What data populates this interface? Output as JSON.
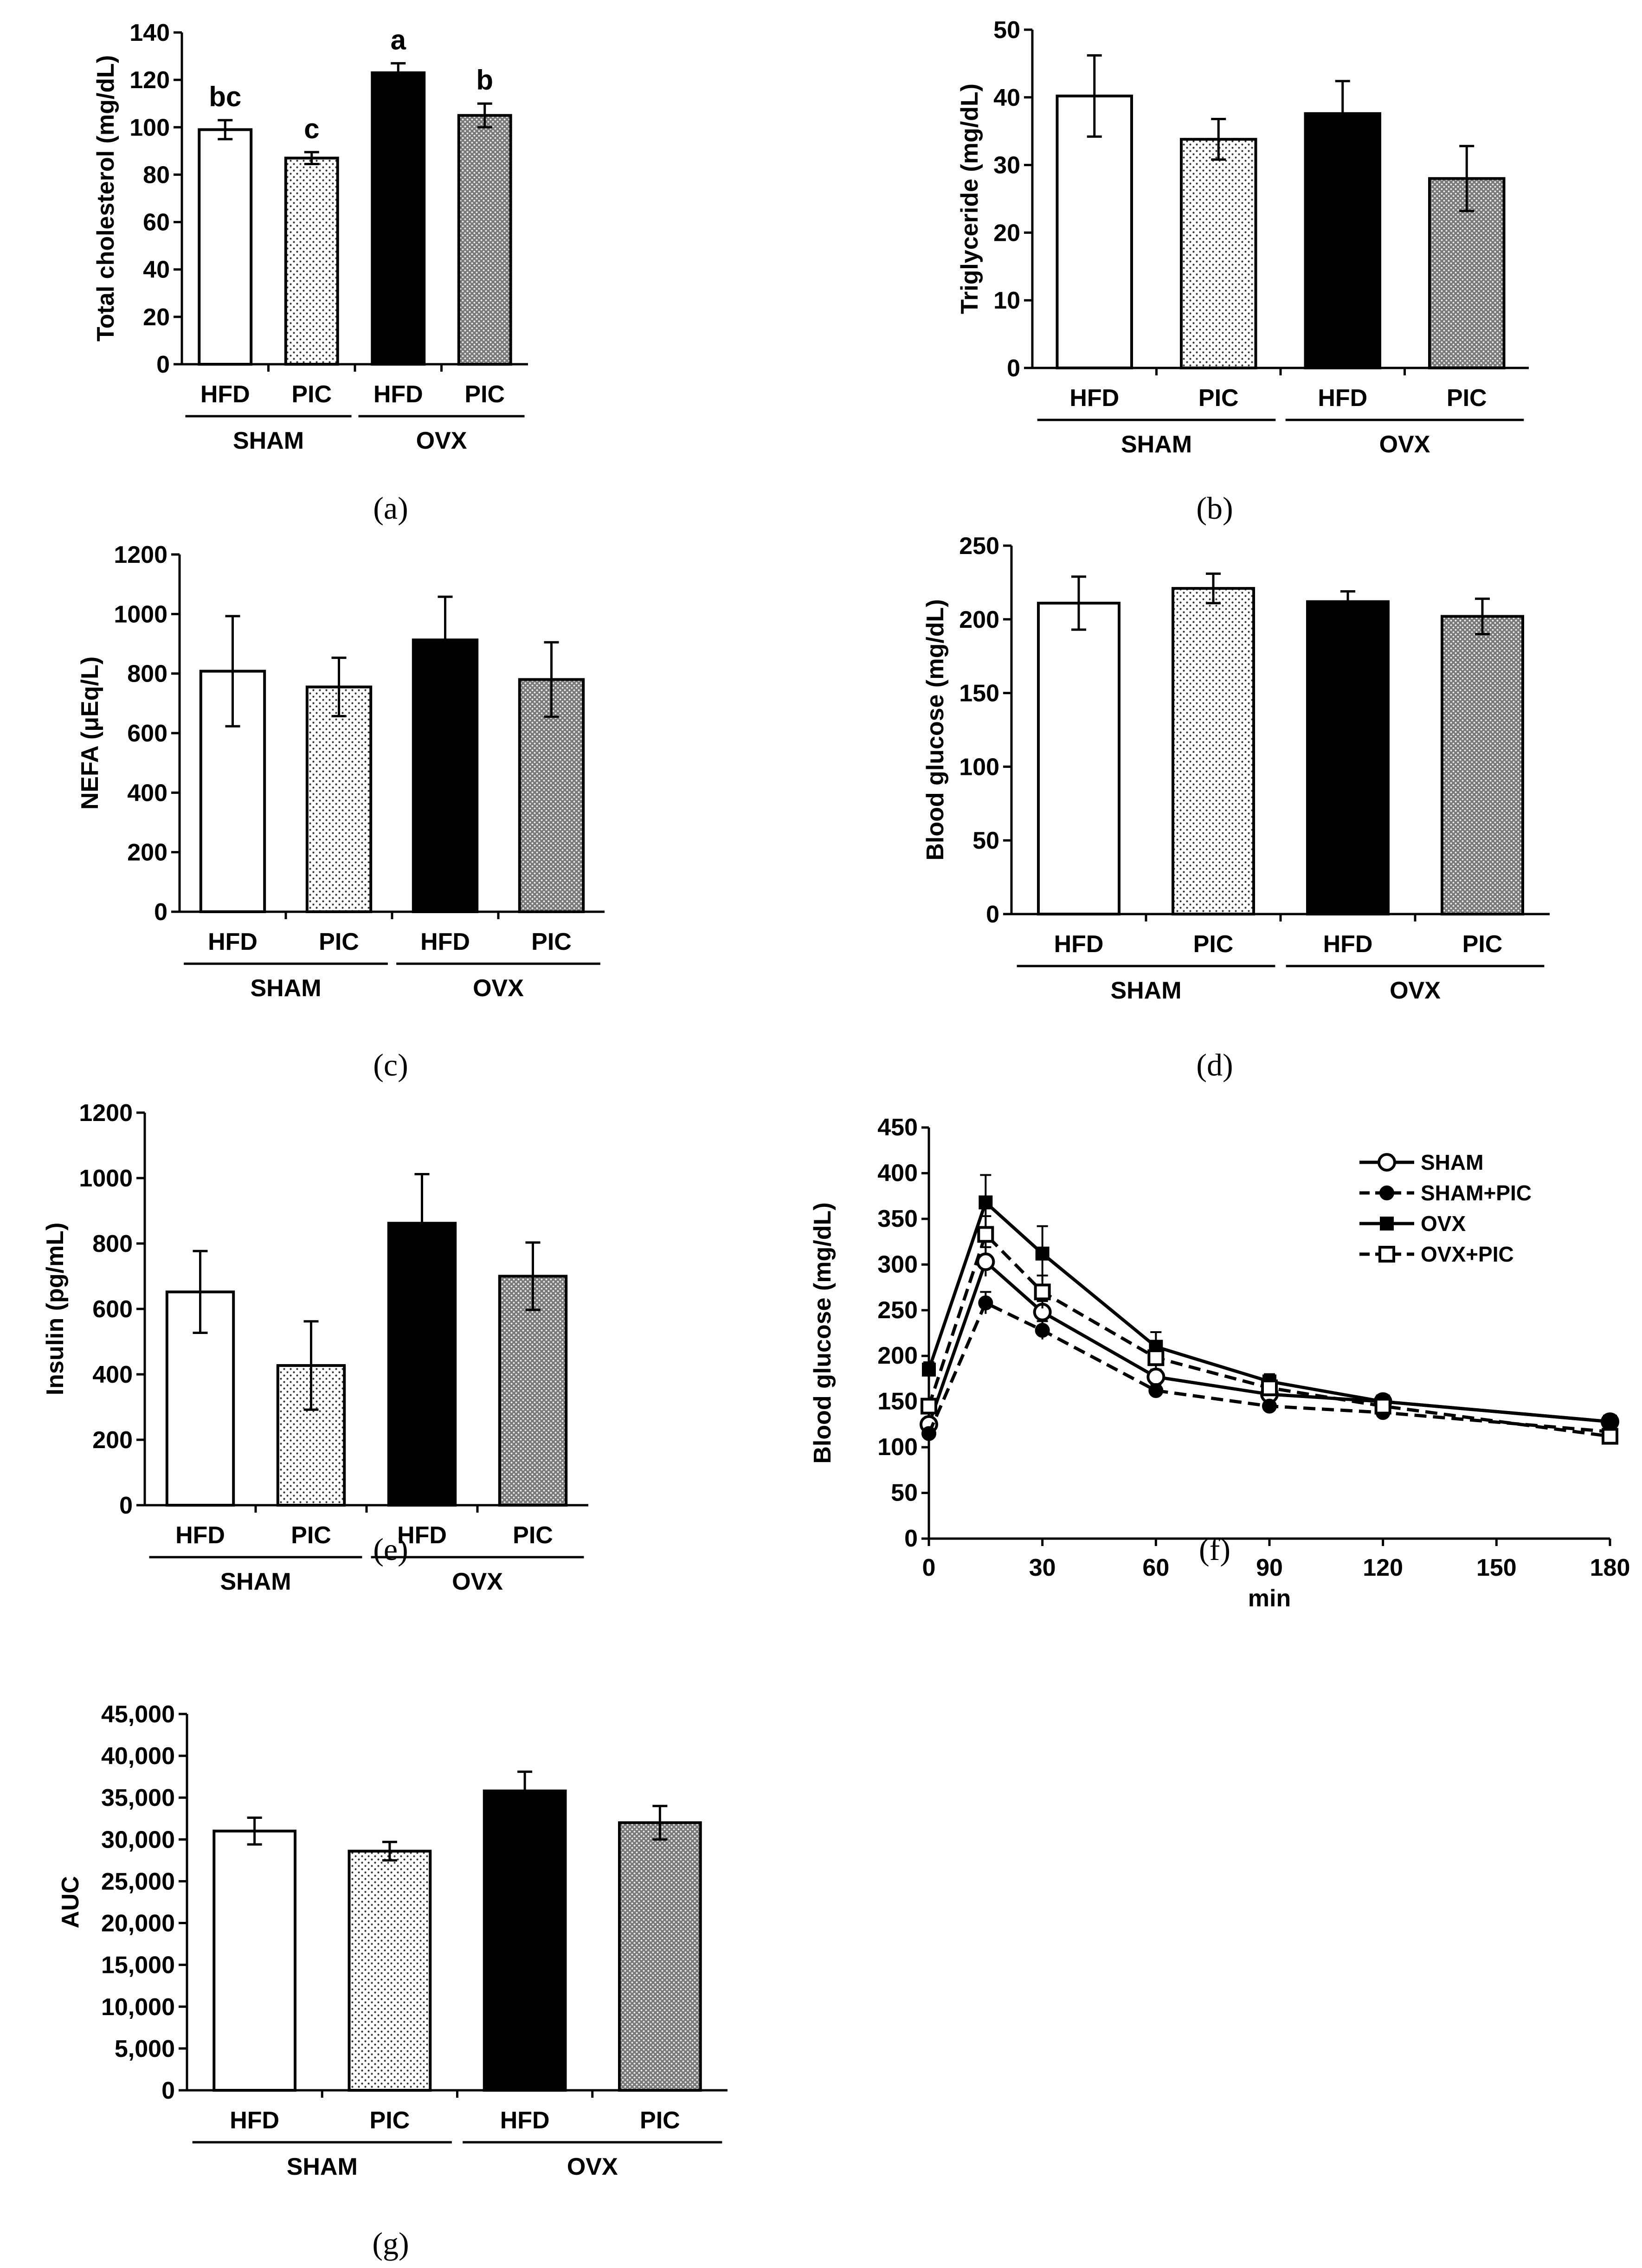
{
  "group_labels": {
    "treatments": [
      "HFD",
      "PIC",
      "HFD",
      "PIC"
    ],
    "groups": [
      "SHAM",
      "OVX"
    ]
  },
  "bar_fills": [
    "#ffffff",
    "url(#pat-dots)",
    "#000000",
    "url(#pat-grid)"
  ],
  "chart_data": [
    {
      "id": "a",
      "type": "bar",
      "caption": "(a)",
      "ylabel": "Total cholesterol (mg/dL)",
      "ylim": [
        0,
        140
      ],
      "yticks": [
        0,
        20,
        40,
        60,
        80,
        100,
        120,
        140
      ],
      "ytick_labels": [
        "0",
        "20",
        "40",
        "60",
        "80",
        "100",
        "120",
        "140"
      ],
      "values": [
        99,
        87,
        123,
        105
      ],
      "errors": [
        4,
        2.5,
        4,
        5
      ],
      "sig_labels": [
        "bc",
        "c",
        "a",
        "b"
      ]
    },
    {
      "id": "b",
      "type": "bar",
      "caption": "(b)",
      "ylabel": "Triglyceride (mg/dL)",
      "ylim": [
        0,
        50
      ],
      "yticks": [
        0,
        10,
        20,
        30,
        40,
        50
      ],
      "ytick_labels": [
        "0",
        "10",
        "20",
        "30",
        "40",
        "50"
      ],
      "values": [
        40.2,
        33.8,
        37.6,
        28
      ],
      "errors": [
        6,
        3,
        4.8,
        4.8
      ]
    },
    {
      "id": "c",
      "type": "bar",
      "caption": "(c)",
      "ylabel": "NEFA (μEq/L)",
      "ylim": [
        0,
        1200
      ],
      "yticks": [
        0,
        200,
        400,
        600,
        800,
        1000,
        1200
      ],
      "ytick_labels": [
        "0",
        "200",
        "400",
        "600",
        "800",
        "1000",
        "1200"
      ],
      "values": [
        808,
        755,
        913,
        780
      ],
      "errors": [
        185,
        98,
        145,
        125
      ]
    },
    {
      "id": "d",
      "type": "bar",
      "caption": "(d)",
      "ylabel": "Blood glucose (mg/dL)",
      "ylim": [
        0,
        250
      ],
      "yticks": [
        0,
        50,
        100,
        150,
        200,
        250
      ],
      "ytick_labels": [
        "0",
        "50",
        "100",
        "150",
        "200",
        "250"
      ],
      "values": [
        211,
        221,
        212,
        202
      ],
      "errors": [
        18,
        10,
        7,
        12
      ]
    },
    {
      "id": "e",
      "type": "bar",
      "caption": "(e)",
      "ylabel": "Insulin (pg/mL)",
      "ylim": [
        0,
        1200
      ],
      "yticks": [
        0,
        200,
        400,
        600,
        800,
        1000,
        1200
      ],
      "ytick_labels": [
        "0",
        "200",
        "400",
        "600",
        "800",
        "1000",
        "1200"
      ],
      "values": [
        652,
        427,
        862,
        700
      ],
      "errors": [
        125,
        135,
        150,
        103
      ]
    },
    {
      "id": "f",
      "type": "line",
      "caption": "(f)",
      "xlabel": "min",
      "ylabel": "Blood glucose (mg/dL)",
      "xlim": [
        0,
        180
      ],
      "ylim": [
        0,
        450
      ],
      "xticks": [
        0,
        30,
        60,
        90,
        120,
        150,
        180
      ],
      "xtick_labels": [
        "0",
        "30",
        "60",
        "90",
        "120",
        "150",
        "180"
      ],
      "yticks": [
        0,
        50,
        100,
        150,
        200,
        250,
        300,
        350,
        400,
        450
      ],
      "ytick_labels": [
        "0",
        "50",
        "100",
        "150",
        "200",
        "250",
        "300",
        "350",
        "400",
        "450"
      ],
      "x": [
        0,
        15,
        30,
        60,
        90,
        120,
        180
      ],
      "series": [
        {
          "name": "SHAM",
          "marker": "circle-open",
          "dash": false,
          "values": [
            125,
            303,
            248,
            177,
            158,
            150,
            128
          ],
          "errors": [
            6,
            16,
            12,
            8,
            6,
            5,
            5
          ]
        },
        {
          "name": "SHAM+PIC",
          "marker": "circle-filled",
          "dash": true,
          "values": [
            115,
            258,
            228,
            162,
            145,
            138,
            117
          ],
          "errors": [
            5,
            12,
            10,
            7,
            6,
            5,
            5
          ]
        },
        {
          "name": "OVX",
          "marker": "square-filled",
          "dash": false,
          "values": [
            185,
            368,
            312,
            210,
            172,
            150,
            128
          ],
          "errors": [
            8,
            30,
            30,
            16,
            8,
            6,
            6
          ]
        },
        {
          "name": "OVX+PIC",
          "marker": "square-open",
          "dash": true,
          "values": [
            145,
            333,
            270,
            198,
            165,
            145,
            112
          ],
          "errors": [
            8,
            20,
            18,
            12,
            8,
            6,
            6
          ]
        }
      ]
    },
    {
      "id": "g",
      "type": "bar",
      "caption": "(g)",
      "ylabel": "AUC",
      "ylim": [
        0,
        45000
      ],
      "yticks": [
        0,
        5000,
        10000,
        15000,
        20000,
        25000,
        30000,
        35000,
        40000,
        45000
      ],
      "ytick_labels": [
        "0",
        "5,000",
        "10,000",
        "15,000",
        "20,000",
        "25,000",
        "30,000",
        "35,000",
        "40,000",
        "45,000"
      ],
      "values": [
        31000,
        28600,
        35800,
        32000
      ],
      "errors": [
        1600,
        1100,
        2300,
        2000
      ]
    }
  ]
}
